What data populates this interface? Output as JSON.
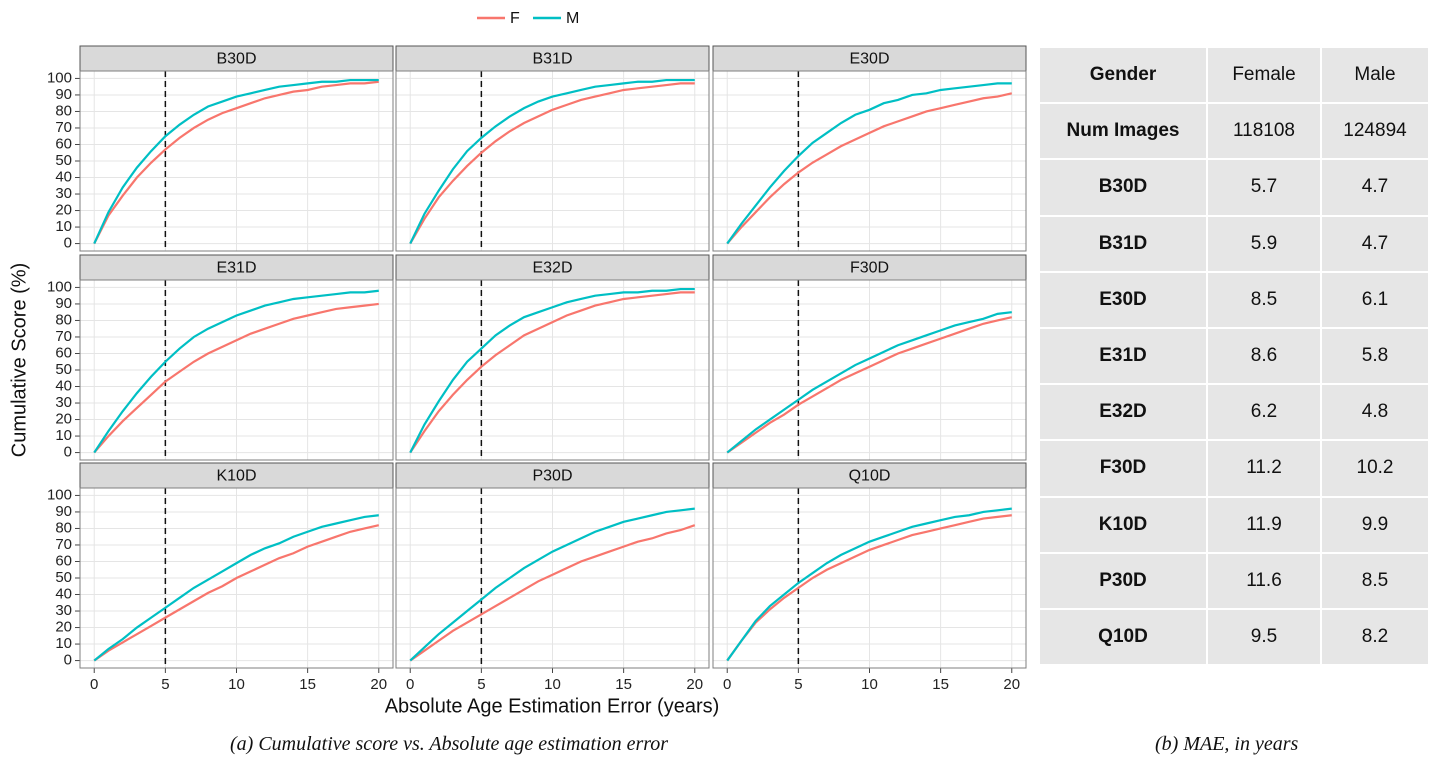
{
  "chart_data": [
    {
      "type": "line",
      "title": "B30D",
      "x": [
        0,
        1,
        2,
        3,
        4,
        5,
        6,
        7,
        8,
        9,
        10,
        11,
        12,
        13,
        14,
        15,
        16,
        17,
        18,
        19,
        20
      ],
      "series": [
        {
          "name": "F",
          "color": "#F8766D",
          "values": [
            0,
            17,
            29,
            40,
            49,
            57,
            64,
            70,
            75,
            79,
            82,
            85,
            88,
            90,
            92,
            93,
            95,
            96,
            97,
            97,
            98
          ]
        },
        {
          "name": "M",
          "color": "#00BFC4",
          "values": [
            0,
            19,
            34,
            46,
            56,
            65,
            72,
            78,
            83,
            86,
            89,
            91,
            93,
            95,
            96,
            97,
            98,
            98,
            99,
            99,
            99
          ]
        }
      ],
      "xlim": [
        -1,
        21
      ],
      "ylim": [
        -4.5,
        104.5
      ],
      "xticks": [
        0,
        5,
        10,
        15,
        20
      ],
      "yticks": [
        0,
        10,
        20,
        30,
        40,
        50,
        60,
        70,
        80,
        90,
        100
      ],
      "vline": 5,
      "grid": true
    },
    {
      "type": "line",
      "title": "B31D",
      "x": [
        0,
        1,
        2,
        3,
        4,
        5,
        6,
        7,
        8,
        9,
        10,
        11,
        12,
        13,
        14,
        15,
        16,
        17,
        18,
        19,
        20
      ],
      "series": [
        {
          "name": "F",
          "color": "#F8766D",
          "values": [
            0,
            15,
            28,
            38,
            47,
            55,
            62,
            68,
            73,
            77,
            81,
            84,
            87,
            89,
            91,
            93,
            94,
            95,
            96,
            97,
            97
          ]
        },
        {
          "name": "M",
          "color": "#00BFC4",
          "values": [
            0,
            18,
            32,
            45,
            56,
            64,
            71,
            77,
            82,
            86,
            89,
            91,
            93,
            95,
            96,
            97,
            98,
            98,
            99,
            99,
            99
          ]
        }
      ],
      "xlim": [
        -1,
        21
      ],
      "ylim": [
        -4.5,
        104.5
      ],
      "xticks": [
        0,
        5,
        10,
        15,
        20
      ],
      "yticks": [
        0,
        10,
        20,
        30,
        40,
        50,
        60,
        70,
        80,
        90,
        100
      ],
      "vline": 5,
      "grid": true
    },
    {
      "type": "line",
      "title": "E30D",
      "x": [
        0,
        1,
        2,
        3,
        4,
        5,
        6,
        7,
        8,
        9,
        10,
        11,
        12,
        13,
        14,
        15,
        16,
        17,
        18,
        19,
        20
      ],
      "series": [
        {
          "name": "F",
          "color": "#F8766D",
          "values": [
            0,
            10,
            19,
            28,
            36,
            43,
            49,
            54,
            59,
            63,
            67,
            71,
            74,
            77,
            80,
            82,
            84,
            86,
            88,
            89,
            91
          ]
        },
        {
          "name": "M",
          "color": "#00BFC4",
          "values": [
            0,
            12,
            23,
            34,
            44,
            53,
            61,
            67,
            73,
            78,
            81,
            85,
            87,
            90,
            91,
            93,
            94,
            95,
            96,
            97,
            97
          ]
        }
      ],
      "xlim": [
        -1,
        21
      ],
      "ylim": [
        -4.5,
        104.5
      ],
      "xticks": [
        0,
        5,
        10,
        15,
        20
      ],
      "yticks": [
        0,
        10,
        20,
        30,
        40,
        50,
        60,
        70,
        80,
        90,
        100
      ],
      "vline": 5,
      "grid": true
    },
    {
      "type": "line",
      "title": "E31D",
      "x": [
        0,
        1,
        2,
        3,
        4,
        5,
        6,
        7,
        8,
        9,
        10,
        11,
        12,
        13,
        14,
        15,
        16,
        17,
        18,
        19,
        20
      ],
      "series": [
        {
          "name": "F",
          "color": "#F8766D",
          "values": [
            0,
            10,
            19,
            27,
            35,
            43,
            49,
            55,
            60,
            64,
            68,
            72,
            75,
            78,
            81,
            83,
            85,
            87,
            88,
            89,
            90
          ]
        },
        {
          "name": "M",
          "color": "#00BFC4",
          "values": [
            0,
            13,
            25,
            36,
            46,
            55,
            63,
            70,
            75,
            79,
            83,
            86,
            89,
            91,
            93,
            94,
            95,
            96,
            97,
            97,
            98
          ]
        }
      ],
      "xlim": [
        -1,
        21
      ],
      "ylim": [
        -4.5,
        104.5
      ],
      "xticks": [
        0,
        5,
        10,
        15,
        20
      ],
      "yticks": [
        0,
        10,
        20,
        30,
        40,
        50,
        60,
        70,
        80,
        90,
        100
      ],
      "vline": 5,
      "grid": true
    },
    {
      "type": "line",
      "title": "E32D",
      "x": [
        0,
        1,
        2,
        3,
        4,
        5,
        6,
        7,
        8,
        9,
        10,
        11,
        12,
        13,
        14,
        15,
        16,
        17,
        18,
        19,
        20
      ],
      "series": [
        {
          "name": "F",
          "color": "#F8766D",
          "values": [
            0,
            13,
            25,
            35,
            44,
            52,
            59,
            65,
            71,
            75,
            79,
            83,
            86,
            89,
            91,
            93,
            94,
            95,
            96,
            97,
            97
          ]
        },
        {
          "name": "M",
          "color": "#00BFC4",
          "values": [
            0,
            17,
            31,
            44,
            55,
            63,
            71,
            77,
            82,
            85,
            88,
            91,
            93,
            95,
            96,
            97,
            97,
            98,
            98,
            99,
            99
          ]
        }
      ],
      "xlim": [
        -1,
        21
      ],
      "ylim": [
        -4.5,
        104.5
      ],
      "xticks": [
        0,
        5,
        10,
        15,
        20
      ],
      "yticks": [
        0,
        10,
        20,
        30,
        40,
        50,
        60,
        70,
        80,
        90,
        100
      ],
      "vline": 5,
      "grid": true
    },
    {
      "type": "line",
      "title": "F30D",
      "x": [
        0,
        1,
        2,
        3,
        4,
        5,
        6,
        7,
        8,
        9,
        10,
        11,
        12,
        13,
        14,
        15,
        16,
        17,
        18,
        19,
        20
      ],
      "series": [
        {
          "name": "F",
          "color": "#F8766D",
          "values": [
            0,
            6,
            12,
            18,
            23,
            29,
            34,
            39,
            44,
            48,
            52,
            56,
            60,
            63,
            66,
            69,
            72,
            75,
            78,
            80,
            82
          ]
        },
        {
          "name": "M",
          "color": "#00BFC4",
          "values": [
            0,
            7,
            14,
            20,
            26,
            32,
            38,
            43,
            48,
            53,
            57,
            61,
            65,
            68,
            71,
            74,
            77,
            79,
            81,
            84,
            85
          ]
        }
      ],
      "xlim": [
        -1,
        21
      ],
      "ylim": [
        -4.5,
        104.5
      ],
      "xticks": [
        0,
        5,
        10,
        15,
        20
      ],
      "yticks": [
        0,
        10,
        20,
        30,
        40,
        50,
        60,
        70,
        80,
        90,
        100
      ],
      "vline": 5,
      "grid": true
    },
    {
      "type": "line",
      "title": "K10D",
      "x": [
        0,
        1,
        2,
        3,
        4,
        5,
        6,
        7,
        8,
        9,
        10,
        11,
        12,
        13,
        14,
        15,
        16,
        17,
        18,
        19,
        20
      ],
      "series": [
        {
          "name": "F",
          "color": "#F8766D",
          "values": [
            0,
            6,
            11,
            16,
            21,
            26,
            31,
            36,
            41,
            45,
            50,
            54,
            58,
            62,
            65,
            69,
            72,
            75,
            78,
            80,
            82
          ]
        },
        {
          "name": "M",
          "color": "#00BFC4",
          "values": [
            0,
            7,
            13,
            20,
            26,
            32,
            38,
            44,
            49,
            54,
            59,
            64,
            68,
            71,
            75,
            78,
            81,
            83,
            85,
            87,
            88
          ]
        }
      ],
      "xlim": [
        -1,
        21
      ],
      "ylim": [
        -4.5,
        104.5
      ],
      "xticks": [
        0,
        5,
        10,
        15,
        20
      ],
      "yticks": [
        0,
        10,
        20,
        30,
        40,
        50,
        60,
        70,
        80,
        90,
        100
      ],
      "vline": 5,
      "grid": true
    },
    {
      "type": "line",
      "title": "P30D",
      "x": [
        0,
        1,
        2,
        3,
        4,
        5,
        6,
        7,
        8,
        9,
        10,
        11,
        12,
        13,
        14,
        15,
        16,
        17,
        18,
        19,
        20
      ],
      "series": [
        {
          "name": "F",
          "color": "#F8766D",
          "values": [
            0,
            6,
            12,
            18,
            23,
            28,
            33,
            38,
            43,
            48,
            52,
            56,
            60,
            63,
            66,
            69,
            72,
            74,
            77,
            79,
            82
          ]
        },
        {
          "name": "M",
          "color": "#00BFC4",
          "values": [
            0,
            8,
            16,
            23,
            30,
            37,
            44,
            50,
            56,
            61,
            66,
            70,
            74,
            78,
            81,
            84,
            86,
            88,
            90,
            91,
            92
          ]
        }
      ],
      "xlim": [
        -1,
        21
      ],
      "ylim": [
        -4.5,
        104.5
      ],
      "xticks": [
        0,
        5,
        10,
        15,
        20
      ],
      "yticks": [
        0,
        10,
        20,
        30,
        40,
        50,
        60,
        70,
        80,
        90,
        100
      ],
      "vline": 5,
      "grid": true
    },
    {
      "type": "line",
      "title": "Q10D",
      "x": [
        0,
        1,
        2,
        3,
        4,
        5,
        6,
        7,
        8,
        9,
        10,
        11,
        12,
        13,
        14,
        15,
        16,
        17,
        18,
        19,
        20
      ],
      "series": [
        {
          "name": "F",
          "color": "#F8766D",
          "values": [
            0,
            12,
            23,
            31,
            38,
            44,
            50,
            55,
            59,
            63,
            67,
            70,
            73,
            76,
            78,
            80,
            82,
            84,
            86,
            87,
            88
          ]
        },
        {
          "name": "M",
          "color": "#00BFC4",
          "values": [
            0,
            12,
            24,
            33,
            40,
            47,
            53,
            59,
            64,
            68,
            72,
            75,
            78,
            81,
            83,
            85,
            87,
            88,
            90,
            91,
            92
          ]
        }
      ],
      "xlim": [
        -1,
        21
      ],
      "ylim": [
        -4.5,
        104.5
      ],
      "xticks": [
        0,
        5,
        10,
        15,
        20
      ],
      "yticks": [
        0,
        10,
        20,
        30,
        40,
        50,
        60,
        70,
        80,
        90,
        100
      ],
      "vline": 5,
      "grid": true
    }
  ],
  "figure": {
    "y_label": "Cumulative Score (%)",
    "x_label": "Absolute Age Estimation Error (years)",
    "caption": "(a) Cumulative score vs. Absolute age estimation error"
  },
  "table": {
    "header": [
      "Gender",
      "Female",
      "Male"
    ],
    "rows": [
      [
        "Num Images",
        118108,
        124894
      ],
      [
        "B30D",
        5.7,
        4.7
      ],
      [
        "B31D",
        5.9,
        4.7
      ],
      [
        "E30D",
        8.5,
        6.1
      ],
      [
        "E31D",
        8.6,
        5.8
      ],
      [
        "E32D",
        6.2,
        4.8
      ],
      [
        "F30D",
        11.2,
        10.2
      ],
      [
        "K10D",
        11.9,
        9.9
      ],
      [
        "P30D",
        11.6,
        8.5
      ],
      [
        "Q10D",
        9.5,
        8.2
      ]
    ],
    "caption": "(b) MAE, in years"
  }
}
